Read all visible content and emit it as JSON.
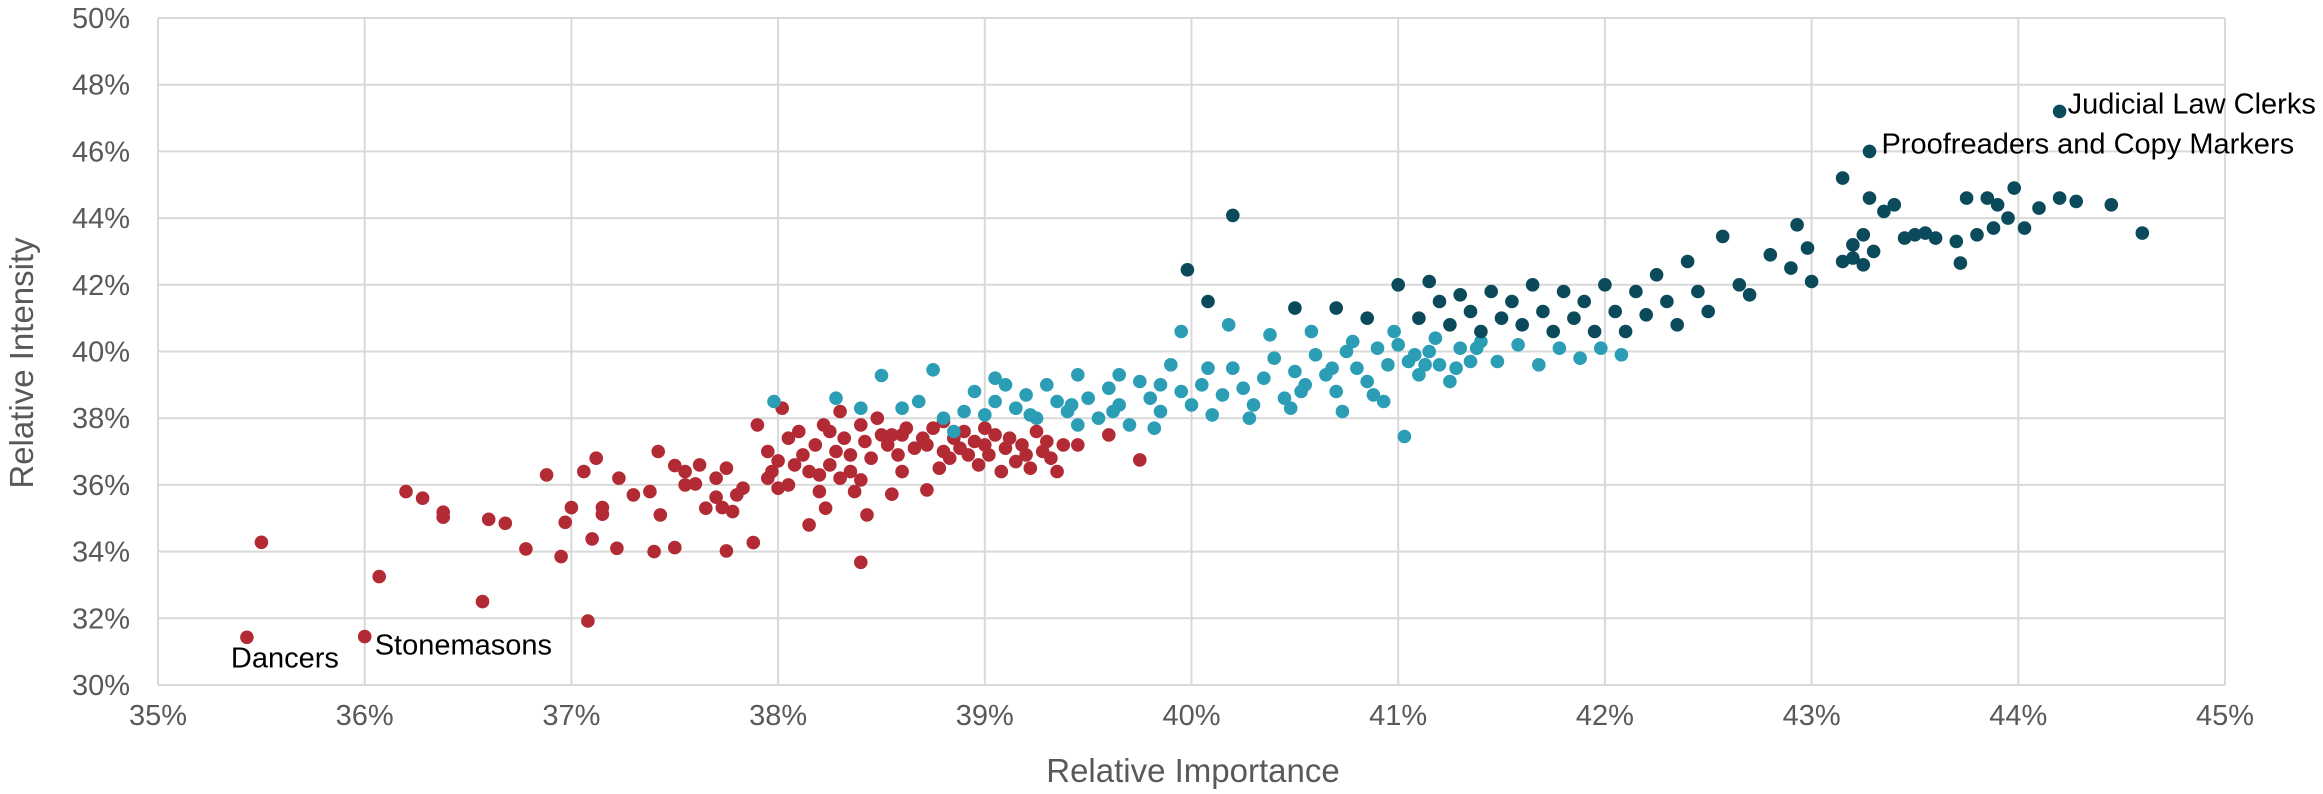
{
  "chart_data": {
    "type": "scatter",
    "title": "",
    "xlabel": "Relative Importance",
    "ylabel": "Relative Intensity",
    "xlim": [
      0.35,
      0.45
    ],
    "ylim": [
      0.3,
      0.5
    ],
    "x_ticks": [
      "35%",
      "36%",
      "37%",
      "38%",
      "39%",
      "40%",
      "41%",
      "42%",
      "43%",
      "44%",
      "45%"
    ],
    "y_ticks": [
      "30%",
      "32%",
      "34%",
      "36%",
      "38%",
      "40%",
      "42%",
      "44%",
      "46%",
      "48%",
      "50%"
    ],
    "grid": true,
    "legend": "none",
    "colors": {
      "low": "#b22a34",
      "mid": "#2b9db5",
      "high": "#0b4a5a"
    },
    "series": [
      {
        "color": "#b22a34",
        "points": [
          [
            0.3543,
            0.3143
          ],
          [
            0.355,
            0.3428
          ],
          [
            0.36,
            0.3145
          ],
          [
            0.3607,
            0.3325
          ],
          [
            0.362,
            0.358
          ],
          [
            0.3628,
            0.356
          ],
          [
            0.3638,
            0.3518
          ],
          [
            0.3638,
            0.3503
          ],
          [
            0.3657,
            0.325
          ],
          [
            0.366,
            0.3497
          ],
          [
            0.3668,
            0.3485
          ],
          [
            0.3678,
            0.3408
          ],
          [
            0.3688,
            0.363
          ],
          [
            0.3695,
            0.3385
          ],
          [
            0.3697,
            0.3488
          ],
          [
            0.37,
            0.3532
          ],
          [
            0.3706,
            0.364
          ],
          [
            0.3708,
            0.3192
          ],
          [
            0.371,
            0.3438
          ],
          [
            0.3712,
            0.368
          ],
          [
            0.3715,
            0.3532
          ],
          [
            0.3715,
            0.3512
          ],
          [
            0.3722,
            0.341
          ],
          [
            0.3723,
            0.362
          ],
          [
            0.373,
            0.357
          ],
          [
            0.3738,
            0.358
          ],
          [
            0.374,
            0.34
          ],
          [
            0.3742,
            0.37
          ],
          [
            0.3743,
            0.351
          ],
          [
            0.375,
            0.3658
          ],
          [
            0.375,
            0.3412
          ],
          [
            0.3755,
            0.36
          ],
          [
            0.3755,
            0.364
          ],
          [
            0.376,
            0.3603
          ],
          [
            0.3762,
            0.366
          ],
          [
            0.3765,
            0.353
          ],
          [
            0.377,
            0.3563
          ],
          [
            0.377,
            0.362
          ],
          [
            0.3773,
            0.3532
          ],
          [
            0.3775,
            0.365
          ],
          [
            0.3775,
            0.3402
          ],
          [
            0.3778,
            0.352
          ],
          [
            0.378,
            0.357
          ],
          [
            0.3783,
            0.359
          ],
          [
            0.3788,
            0.3427
          ],
          [
            0.379,
            0.378
          ],
          [
            0.3795,
            0.362
          ],
          [
            0.3795,
            0.37
          ],
          [
            0.3797,
            0.364
          ],
          [
            0.38,
            0.359
          ],
          [
            0.38,
            0.3672
          ],
          [
            0.3802,
            0.383
          ],
          [
            0.3805,
            0.36
          ],
          [
            0.3805,
            0.374
          ],
          [
            0.3808,
            0.366
          ],
          [
            0.381,
            0.376
          ],
          [
            0.3812,
            0.369
          ],
          [
            0.3815,
            0.364
          ],
          [
            0.3815,
            0.348
          ],
          [
            0.3818,
            0.372
          ],
          [
            0.382,
            0.363
          ],
          [
            0.382,
            0.358
          ],
          [
            0.3822,
            0.378
          ],
          [
            0.3823,
            0.353
          ],
          [
            0.3825,
            0.366
          ],
          [
            0.3825,
            0.376
          ],
          [
            0.3828,
            0.37
          ],
          [
            0.383,
            0.362
          ],
          [
            0.383,
            0.382
          ],
          [
            0.3832,
            0.374
          ],
          [
            0.3835,
            0.364
          ],
          [
            0.3835,
            0.369
          ],
          [
            0.3837,
            0.358
          ],
          [
            0.384,
            0.378
          ],
          [
            0.384,
            0.3615
          ],
          [
            0.3842,
            0.373
          ],
          [
            0.3843,
            0.351
          ],
          [
            0.3845,
            0.368
          ],
          [
            0.3848,
            0.38
          ],
          [
            0.385,
            0.375
          ],
          [
            0.3853,
            0.372
          ],
          [
            0.3855,
            0.375
          ],
          [
            0.3858,
            0.369
          ],
          [
            0.386,
            0.375
          ],
          [
            0.3862,
            0.377
          ],
          [
            0.3866,
            0.371
          ],
          [
            0.387,
            0.374
          ],
          [
            0.3872,
            0.372
          ],
          [
            0.3875,
            0.377
          ],
          [
            0.3878,
            0.365
          ],
          [
            0.388,
            0.37
          ],
          [
            0.388,
            0.379
          ],
          [
            0.3883,
            0.368
          ],
          [
            0.3885,
            0.374
          ],
          [
            0.3888,
            0.371
          ],
          [
            0.389,
            0.376
          ],
          [
            0.3892,
            0.369
          ],
          [
            0.3895,
            0.373
          ],
          [
            0.3897,
            0.366
          ],
          [
            0.39,
            0.377
          ],
          [
            0.39,
            0.372
          ],
          [
            0.3902,
            0.369
          ],
          [
            0.3905,
            0.375
          ],
          [
            0.3908,
            0.364
          ],
          [
            0.391,
            0.371
          ],
          [
            0.3912,
            0.374
          ],
          [
            0.3915,
            0.367
          ],
          [
            0.3918,
            0.372
          ],
          [
            0.392,
            0.369
          ],
          [
            0.3922,
            0.365
          ],
          [
            0.3925,
            0.376
          ],
          [
            0.3928,
            0.37
          ],
          [
            0.393,
            0.373
          ],
          [
            0.3932,
            0.368
          ],
          [
            0.3935,
            0.364
          ],
          [
            0.3938,
            0.372
          ],
          [
            0.384,
            0.3368
          ],
          [
            0.3855,
            0.3572
          ],
          [
            0.386,
            0.364
          ],
          [
            0.3872,
            0.3585
          ],
          [
            0.3945,
            0.372
          ],
          [
            0.396,
            0.375
          ],
          [
            0.3975,
            0.3675
          ]
        ]
      },
      {
        "color": "#2b9db5",
        "points": [
          [
            0.3798,
            0.385
          ],
          [
            0.3828,
            0.386
          ],
          [
            0.384,
            0.383
          ],
          [
            0.385,
            0.3928
          ],
          [
            0.386,
            0.383
          ],
          [
            0.3868,
            0.385
          ],
          [
            0.3875,
            0.3945
          ],
          [
            0.388,
            0.38
          ],
          [
            0.3885,
            0.376
          ],
          [
            0.389,
            0.382
          ],
          [
            0.3895,
            0.388
          ],
          [
            0.39,
            0.381
          ],
          [
            0.3905,
            0.385
          ],
          [
            0.391,
            0.39
          ],
          [
            0.3915,
            0.383
          ],
          [
            0.392,
            0.387
          ],
          [
            0.3925,
            0.38
          ],
          [
            0.393,
            0.39
          ],
          [
            0.3935,
            0.385
          ],
          [
            0.394,
            0.382
          ],
          [
            0.3945,
            0.393
          ],
          [
            0.395,
            0.386
          ],
          [
            0.3955,
            0.38
          ],
          [
            0.396,
            0.389
          ],
          [
            0.3965,
            0.384
          ],
          [
            0.397,
            0.378
          ],
          [
            0.3975,
            0.391
          ],
          [
            0.398,
            0.386
          ],
          [
            0.3985,
            0.382
          ],
          [
            0.399,
            0.396
          ],
          [
            0.3995,
            0.388
          ],
          [
            0.4,
            0.384
          ],
          [
            0.4005,
            0.39
          ],
          [
            0.401,
            0.381
          ],
          [
            0.4015,
            0.387
          ],
          [
            0.402,
            0.395
          ],
          [
            0.4025,
            0.389
          ],
          [
            0.403,
            0.384
          ],
          [
            0.4035,
            0.392
          ],
          [
            0.404,
            0.398
          ],
          [
            0.4045,
            0.386
          ],
          [
            0.405,
            0.394
          ],
          [
            0.4055,
            0.39
          ],
          [
            0.406,
            0.399
          ],
          [
            0.4065,
            0.393
          ],
          [
            0.407,
            0.388
          ],
          [
            0.4075,
            0.4
          ],
          [
            0.408,
            0.395
          ],
          [
            0.4085,
            0.391
          ],
          [
            0.409,
            0.401
          ],
          [
            0.4095,
            0.396
          ],
          [
            0.41,
            0.402
          ],
          [
            0.4105,
            0.397
          ],
          [
            0.411,
            0.393
          ],
          [
            0.4115,
            0.4
          ],
          [
            0.412,
            0.396
          ],
          [
            0.4125,
            0.391
          ],
          [
            0.413,
            0.401
          ],
          [
            0.4135,
            0.397
          ],
          [
            0.414,
            0.403
          ],
          [
            0.3905,
            0.392
          ],
          [
            0.3945,
            0.378
          ],
          [
            0.3965,
            0.393
          ],
          [
            0.3985,
            0.39
          ],
          [
            0.3995,
            0.406
          ],
          [
            0.4008,
            0.395
          ],
          [
            0.4018,
            0.408
          ],
          [
            0.4028,
            0.38
          ],
          [
            0.4038,
            0.405
          ],
          [
            0.4048,
            0.383
          ],
          [
            0.4058,
            0.406
          ],
          [
            0.4068,
            0.395
          ],
          [
            0.4078,
            0.403
          ],
          [
            0.4088,
            0.387
          ],
          [
            0.4098,
            0.406
          ],
          [
            0.4108,
            0.399
          ],
          [
            0.4118,
            0.404
          ],
          [
            0.4128,
            0.395
          ],
          [
            0.4138,
            0.401
          ],
          [
            0.4148,
            0.397
          ],
          [
            0.4158,
            0.402
          ],
          [
            0.4168,
            0.396
          ],
          [
            0.4178,
            0.401
          ],
          [
            0.4188,
            0.398
          ],
          [
            0.4198,
            0.401
          ],
          [
            0.4208,
            0.399
          ],
          [
            0.4103,
            0.3745
          ],
          [
            0.3982,
            0.377
          ],
          [
            0.3962,
            0.382
          ],
          [
            0.3942,
            0.384
          ],
          [
            0.3922,
            0.381
          ],
          [
            0.4053,
            0.388
          ],
          [
            0.4073,
            0.382
          ],
          [
            0.4093,
            0.385
          ],
          [
            0.4113,
            0.396
          ]
        ]
      },
      {
        "color": "#0b4a5a",
        "points": [
          [
            0.402,
            0.4408
          ],
          [
            0.3998,
            0.4245
          ],
          [
            0.4008,
            0.415
          ],
          [
            0.405,
            0.413
          ],
          [
            0.407,
            0.413
          ],
          [
            0.4085,
            0.41
          ],
          [
            0.41,
            0.42
          ],
          [
            0.411,
            0.41
          ],
          [
            0.4115,
            0.421
          ],
          [
            0.412,
            0.415
          ],
          [
            0.4125,
            0.408
          ],
          [
            0.413,
            0.417
          ],
          [
            0.4135,
            0.412
          ],
          [
            0.414,
            0.406
          ],
          [
            0.4145,
            0.418
          ],
          [
            0.415,
            0.41
          ],
          [
            0.4155,
            0.415
          ],
          [
            0.416,
            0.408
          ],
          [
            0.4165,
            0.42
          ],
          [
            0.417,
            0.412
          ],
          [
            0.4175,
            0.406
          ],
          [
            0.418,
            0.418
          ],
          [
            0.4185,
            0.41
          ],
          [
            0.419,
            0.415
          ],
          [
            0.4195,
            0.406
          ],
          [
            0.42,
            0.42
          ],
          [
            0.4205,
            0.412
          ],
          [
            0.421,
            0.406
          ],
          [
            0.4215,
            0.418
          ],
          [
            0.422,
            0.411
          ],
          [
            0.4225,
            0.423
          ],
          [
            0.423,
            0.415
          ],
          [
            0.4235,
            0.408
          ],
          [
            0.424,
            0.427
          ],
          [
            0.4245,
            0.418
          ],
          [
            0.425,
            0.412
          ],
          [
            0.4257,
            0.4345
          ],
          [
            0.4265,
            0.42
          ],
          [
            0.427,
            0.417
          ],
          [
            0.428,
            0.429
          ],
          [
            0.429,
            0.425
          ],
          [
            0.4293,
            0.438
          ],
          [
            0.4298,
            0.431
          ],
          [
            0.4315,
            0.452
          ],
          [
            0.432,
            0.428
          ],
          [
            0.4325,
            0.435
          ],
          [
            0.4328,
            0.446
          ],
          [
            0.433,
            0.43
          ],
          [
            0.4335,
            0.442
          ],
          [
            0.434,
            0.444
          ],
          [
            0.4345,
            0.434
          ],
          [
            0.435,
            0.435
          ],
          [
            0.436,
            0.434
          ],
          [
            0.437,
            0.433
          ],
          [
            0.4375,
            0.446
          ],
          [
            0.438,
            0.435
          ],
          [
            0.4385,
            0.446
          ],
          [
            0.439,
            0.444
          ],
          [
            0.4395,
            0.44
          ],
          [
            0.4398,
            0.449
          ],
          [
            0.4403,
            0.437
          ],
          [
            0.441,
            0.443
          ],
          [
            0.442,
            0.446
          ],
          [
            0.4428,
            0.445
          ],
          [
            0.4445,
            0.444
          ],
          [
            0.446,
            0.4355
          ],
          [
            0.4372,
            0.4265
          ],
          [
            0.4325,
            0.426
          ],
          [
            0.442,
            0.472
          ],
          [
            0.4328,
            0.46
          ],
          [
            0.4315,
            0.427
          ],
          [
            0.432,
            0.432
          ],
          [
            0.4388,
            0.437
          ],
          [
            0.4355,
            0.4355
          ],
          [
            0.43,
            0.421
          ]
        ]
      }
    ],
    "annotations": [
      {
        "label": "Judicial Law Clerks",
        "x": 0.442,
        "y": 0.472
      },
      {
        "label": "Proofreaders and Copy Markers",
        "x": 0.4328,
        "y": 0.46
      },
      {
        "label": "Dancers",
        "x": 0.3543,
        "y": 0.3143
      },
      {
        "label": "Stonemasons",
        "x": 0.36,
        "y": 0.3145
      }
    ]
  }
}
